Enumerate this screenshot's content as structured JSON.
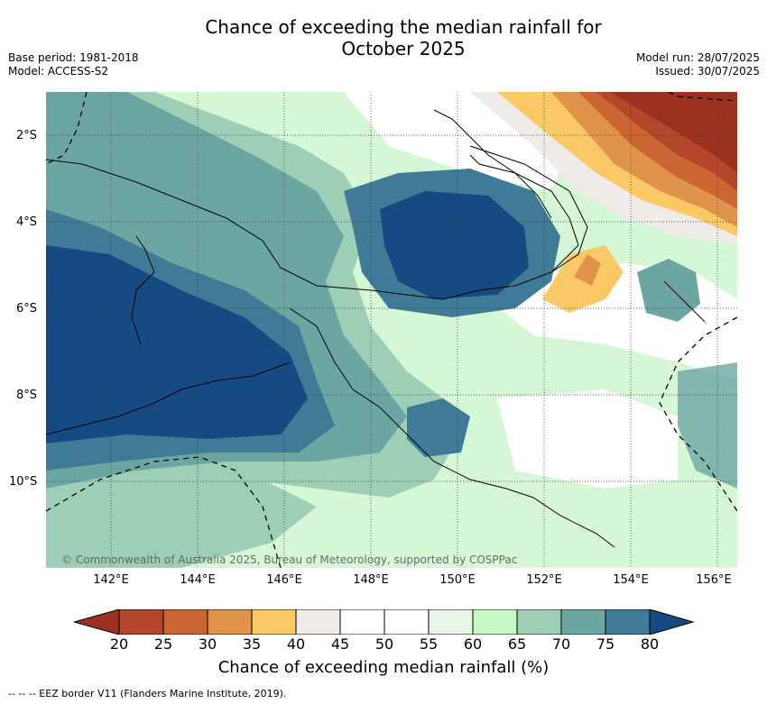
{
  "title_line1": "Chance of exceeding the median rainfall for",
  "title_line2": "October 2025",
  "meta_left": {
    "base_period": "Base period: 1981-2018",
    "model": "Model: ACCESS-S2"
  },
  "meta_right": {
    "model_run": "Model run: 28/07/2025",
    "issued": "Issued: 30/07/2025"
  },
  "copyright": "© Commonwealth of Australia 2025, Bureau of Meteorology, supported by COSPPac",
  "lat_labels": [
    "2°S",
    "4°S",
    "6°S",
    "8°S",
    "10°S"
  ],
  "lon_labels": [
    "142°E",
    "144°E",
    "146°E",
    "148°E",
    "150°E",
    "152°E",
    "154°E",
    "156°E"
  ],
  "colorbar_ticks": [
    "20",
    "25",
    "30",
    "35",
    "40",
    "45",
    "50",
    "55",
    "60",
    "65",
    "70",
    "75",
    "80"
  ],
  "colorbar_label": "Chance of exceeding median rainfall (%)",
  "footnote": "-- -- -- EEZ border V11 (Flanders Marine Institute, 2019).",
  "colors": {
    "lt20": "#9b3220",
    "c20": "#b4462a",
    "c25": "#cb6532",
    "c30": "#e0944a",
    "c35": "#fbc866",
    "c40": "#efece8",
    "c45": "#ffffff",
    "c50": "#ffffff",
    "c55": "#e9f5e6",
    "c60": "#c6f8c6",
    "c65": "#9ccfb6",
    "c70": "#6ca6a3",
    "c75": "#3f7a96",
    "gt80": "#164a82"
  }
}
